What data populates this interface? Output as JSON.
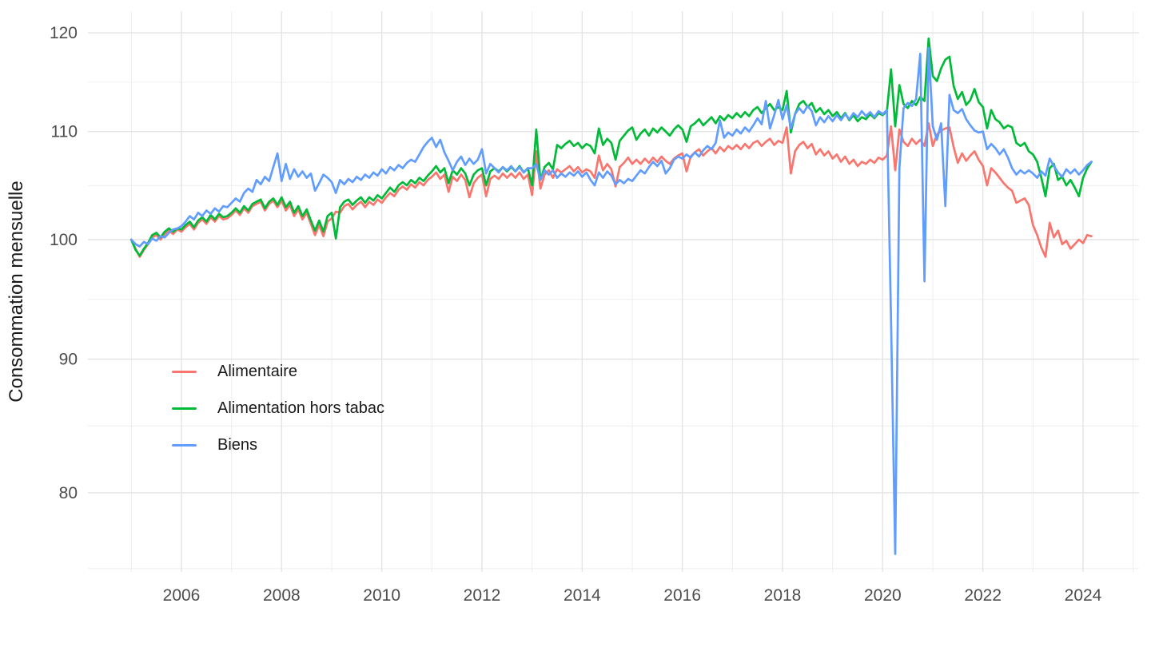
{
  "chart_data": {
    "type": "line",
    "title": "",
    "xlabel": "",
    "ylabel": "Consommation mensuelle",
    "y_scale": "log10",
    "x_axis": {
      "major_ticks": [
        2006,
        2008,
        2010,
        2012,
        2014,
        2016,
        2018,
        2020,
        2022,
        2024
      ],
      "minor_ticks": [
        2005,
        2007,
        2009,
        2011,
        2013,
        2015,
        2017,
        2019,
        2021,
        2023,
        2025
      ],
      "range": [
        2004.85,
        2024.55
      ]
    },
    "y_axis": {
      "title": "Consommation mensuelle",
      "major_ticks": [
        80,
        90,
        100,
        110,
        120
      ],
      "minor_ticks": [
        74.83,
        84.85,
        94.87,
        104.88,
        114.89
      ],
      "range": [
        75,
        122
      ]
    },
    "start_year": 2005,
    "start_month": 1,
    "frequency": "monthly",
    "legend_position": "inside-left-middle",
    "grid": true,
    "series": [
      {
        "name": "Alimentaire",
        "slug": "alimentaire",
        "color": "#F8766D",
        "values": [
          100.0,
          99.2,
          98.5,
          99.1,
          99.6,
          100.2,
          100.4,
          100.0,
          100.5,
          100.8,
          100.5,
          100.9,
          100.7,
          101.1,
          101.4,
          100.9,
          101.5,
          101.8,
          101.4,
          102.0,
          101.6,
          102.1,
          101.8,
          101.9,
          102.2,
          102.6,
          102.2,
          102.8,
          102.4,
          103.0,
          103.2,
          103.4,
          102.6,
          103.2,
          103.5,
          102.9,
          103.5,
          102.6,
          103.1,
          102.1,
          102.7,
          101.8,
          102.4,
          101.4,
          100.4,
          101.3,
          100.3,
          101.6,
          101.9,
          102.5,
          102.4,
          103.0,
          103.2,
          102.7,
          103.1,
          103.4,
          102.9,
          103.4,
          103.1,
          103.6,
          103.3,
          103.8,
          104.2,
          103.9,
          104.5,
          104.8,
          104.5,
          105.0,
          104.7,
          105.2,
          104.9,
          105.4,
          105.7,
          106.1,
          105.5,
          105.9,
          104.3,
          105.7,
          105.3,
          105.9,
          105.4,
          103.8,
          105.1,
          105.6,
          105.9,
          103.9,
          105.5,
          105.8,
          105.5,
          106.0,
          105.6,
          106.0,
          105.6,
          106.1,
          105.5,
          105.9,
          104.0,
          108.1,
          104.6,
          105.9,
          106.3,
          105.6,
          106.4,
          106.1,
          106.4,
          106.7,
          106.2,
          106.6,
          106.1,
          106.4,
          106.2,
          105.6,
          107.7,
          106.3,
          106.9,
          106.4,
          104.8,
          106.6,
          107.0,
          107.5,
          106.9,
          107.3,
          106.9,
          107.4,
          107.0,
          107.5,
          107.1,
          107.6,
          107.2,
          106.9,
          107.4,
          107.7,
          107.9,
          106.2,
          107.6,
          108.0,
          108.3,
          107.7,
          108.1,
          108.4,
          107.9,
          108.5,
          108.1,
          108.6,
          108.3,
          108.7,
          108.3,
          108.8,
          108.4,
          108.9,
          109.1,
          108.6,
          109.0,
          109.3,
          108.7,
          109.1,
          108.9,
          110.4,
          106.0,
          108.1,
          108.7,
          109.0,
          108.4,
          108.8,
          107.8,
          108.3,
          107.7,
          108.1,
          107.4,
          107.8,
          107.1,
          107.6,
          106.9,
          107.3,
          106.7,
          107.1,
          106.9,
          107.3,
          107.0,
          107.5,
          107.3,
          107.7,
          110.5,
          106.3,
          110.2,
          109.0,
          108.6,
          109.3,
          108.8,
          109.2,
          108.6,
          110.8,
          108.6,
          109.7,
          110.1,
          110.3,
          110.4,
          108.5,
          107.0,
          107.9,
          107.2,
          107.7,
          108.1,
          107.3,
          106.7,
          104.9,
          106.5,
          106.1,
          105.6,
          105.1,
          104.7,
          104.4,
          103.3,
          103.5,
          103.7,
          103.1,
          101.3,
          100.4,
          99.3,
          98.5,
          101.5,
          100.2,
          100.8,
          99.6,
          99.9,
          99.2,
          99.6,
          100.0,
          99.7,
          100.4,
          100.3
        ]
      },
      {
        "name": "Alimentation hors tabac",
        "slug": "alimentation-hors-tabac",
        "color": "#00BA38",
        "values": [
          100.0,
          99.1,
          98.6,
          99.2,
          99.7,
          100.4,
          100.6,
          100.2,
          100.7,
          101.0,
          100.7,
          101.0,
          100.9,
          101.3,
          101.6,
          101.1,
          101.7,
          102.0,
          101.6,
          102.2,
          101.8,
          102.3,
          102.0,
          102.1,
          102.4,
          102.8,
          102.4,
          103.0,
          102.6,
          103.2,
          103.4,
          103.6,
          102.8,
          103.4,
          103.7,
          103.1,
          103.8,
          102.9,
          103.4,
          102.4,
          103.0,
          102.1,
          102.7,
          101.7,
          100.8,
          101.7,
          100.7,
          102.1,
          102.4,
          100.1,
          102.9,
          103.4,
          103.6,
          103.1,
          103.5,
          103.8,
          103.3,
          103.8,
          103.5,
          104.0,
          103.7,
          104.2,
          104.7,
          104.3,
          104.9,
          105.2,
          104.9,
          105.4,
          105.1,
          105.6,
          105.3,
          105.8,
          106.2,
          106.7,
          106.1,
          106.5,
          105.1,
          106.3,
          105.9,
          106.5,
          106.0,
          104.9,
          105.9,
          106.3,
          106.5,
          104.9,
          106.2,
          106.5,
          106.2,
          106.6,
          106.2,
          106.6,
          106.2,
          106.7,
          106.1,
          106.5,
          104.9,
          110.2,
          105.4,
          106.6,
          107.0,
          106.4,
          108.7,
          108.4,
          108.8,
          109.1,
          108.6,
          108.9,
          108.4,
          108.8,
          108.6,
          107.9,
          110.3,
          108.7,
          109.3,
          108.9,
          107.3,
          109.1,
          109.6,
          110.1,
          110.4,
          109.2,
          109.8,
          110.2,
          109.6,
          110.3,
          109.9,
          110.4,
          110.0,
          109.6,
          110.2,
          110.6,
          110.2,
          109.0,
          110.5,
          110.8,
          111.2,
          110.6,
          111.0,
          111.4,
          110.8,
          111.5,
          111.1,
          111.6,
          111.3,
          111.8,
          111.4,
          111.9,
          111.5,
          112.1,
          112.4,
          111.8,
          112.3,
          112.7,
          112.1,
          112.4,
          112.1,
          114.0,
          109.9,
          111.7,
          112.7,
          113.0,
          112.4,
          112.8,
          111.9,
          112.3,
          111.7,
          112.1,
          111.5,
          111.9,
          111.3,
          111.8,
          111.1,
          111.6,
          111.0,
          111.4,
          111.2,
          111.7,
          111.3,
          111.8,
          111.6,
          112.0,
          116.2,
          110.5,
          114.6,
          112.7,
          112.3,
          113.0,
          112.6,
          113.4,
          113.0,
          119.4,
          115.5,
          115.0,
          116.3,
          117.2,
          117.5,
          114.5,
          113.2,
          113.9,
          112.6,
          113.1,
          114.2,
          112.9,
          112.4,
          110.3,
          112.1,
          111.2,
          110.9,
          110.3,
          110.6,
          110.4,
          108.9,
          108.6,
          108.9,
          108.1,
          107.8,
          107.1,
          105.6,
          103.9,
          106.5,
          106.9,
          105.4,
          105.7,
          104.9,
          105.4,
          104.7,
          103.9,
          105.6,
          106.5,
          107.1
        ]
      },
      {
        "name": "Biens",
        "slug": "biens",
        "color": "#619CFF",
        "values": [
          100.0,
          99.6,
          99.4,
          99.8,
          99.6,
          100.1,
          99.9,
          100.3,
          100.2,
          100.6,
          100.9,
          101.0,
          101.2,
          101.6,
          102.1,
          101.8,
          102.4,
          102.1,
          102.6,
          102.3,
          102.8,
          102.5,
          103.0,
          102.9,
          103.3,
          103.7,
          103.4,
          104.2,
          104.6,
          104.3,
          105.4,
          105.0,
          105.7,
          105.3,
          106.6,
          107.9,
          105.3,
          106.9,
          105.5,
          106.4,
          105.7,
          106.2,
          105.6,
          106.0,
          104.4,
          105.1,
          105.9,
          105.6,
          105.2,
          104.2,
          105.4,
          105.0,
          105.5,
          105.2,
          105.7,
          105.4,
          105.9,
          105.6,
          106.1,
          105.8,
          106.4,
          106.0,
          106.6,
          106.3,
          106.8,
          106.5,
          107.0,
          107.3,
          107.1,
          107.8,
          108.5,
          109.0,
          109.4,
          108.5,
          109.2,
          108.0,
          107.2,
          106.3,
          107.1,
          107.6,
          106.8,
          107.4,
          106.9,
          107.3,
          108.3,
          106.0,
          106.9,
          106.5,
          106.1,
          106.6,
          106.3,
          106.7,
          106.2,
          106.6,
          106.1,
          106.5,
          106.5,
          106.9,
          105.4,
          106.3,
          105.9,
          106.3,
          105.6,
          106.0,
          105.7,
          106.1,
          105.8,
          106.2,
          105.7,
          106.1,
          105.4,
          104.9,
          106.1,
          105.6,
          106.2,
          105.8,
          105.0,
          105.4,
          105.1,
          105.5,
          105.3,
          105.8,
          106.3,
          106.0,
          106.6,
          107.1,
          106.7,
          107.2,
          106.0,
          106.5,
          107.3,
          107.6,
          107.4,
          107.8,
          107.5,
          108.0,
          107.6,
          108.2,
          108.6,
          108.3,
          108.9,
          111.1,
          109.4,
          109.9,
          109.6,
          110.2,
          109.8,
          110.4,
          110.0,
          110.6,
          111.3,
          110.7,
          113.0,
          110.3,
          111.6,
          113.1,
          111.2,
          112.6,
          110.3,
          111.7,
          112.3,
          111.8,
          112.5,
          112.0,
          110.6,
          111.4,
          110.9,
          111.5,
          111.0,
          111.6,
          111.1,
          111.7,
          111.2,
          111.8,
          111.4,
          112.0,
          111.5,
          111.9,
          111.4,
          112.0,
          111.7,
          112.1,
          93.0,
          75.8,
          106.5,
          112.3,
          112.8,
          112.5,
          113.2,
          117.8,
          96.4,
          118.4,
          110.5,
          109.2,
          110.8,
          103.0,
          113.6,
          112.1,
          111.8,
          112.2,
          111.2,
          110.6,
          110.1,
          109.9,
          110.0,
          108.3,
          108.8,
          108.4,
          107.8,
          108.3,
          107.5,
          106.5,
          105.9,
          106.3,
          106.0,
          106.3,
          106.0,
          105.6,
          106.2,
          105.8,
          107.4,
          106.7,
          106.1,
          105.7,
          106.4,
          106.0,
          106.4,
          105.9,
          106.3,
          106.8,
          107.1
        ]
      }
    ]
  }
}
